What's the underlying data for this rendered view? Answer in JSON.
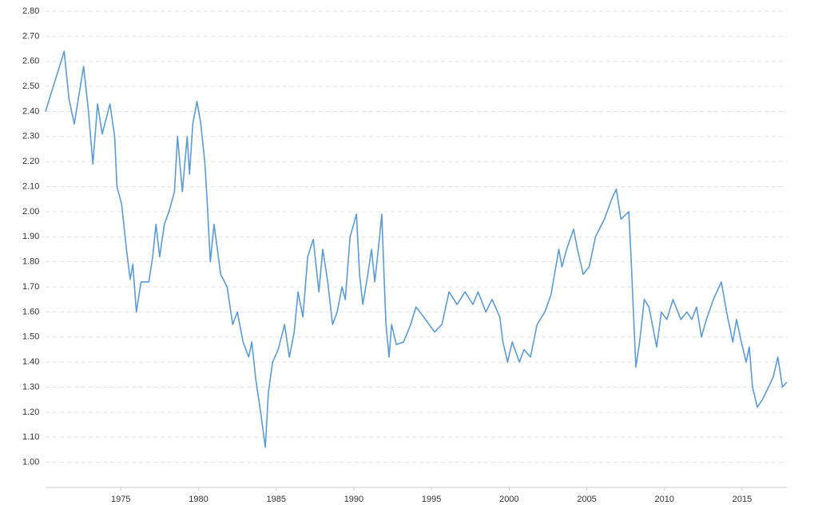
{
  "chart_data": {
    "type": "line",
    "x": [
      1970.15,
      1971.35,
      1971.66,
      1972.0,
      1972.6,
      1972.9,
      1973.2,
      1973.5,
      1973.8,
      1974.3,
      1974.6,
      1974.75,
      1975.05,
      1975.36,
      1975.6,
      1975.77,
      1976.0,
      1976.3,
      1976.8,
      1977.05,
      1977.26,
      1977.5,
      1977.8,
      1978.1,
      1978.45,
      1978.65,
      1978.96,
      1979.27,
      1979.42,
      1979.63,
      1979.9,
      1980.15,
      1980.4,
      1980.55,
      1980.76,
      1981.0,
      1981.43,
      1981.84,
      1982.2,
      1982.5,
      1982.87,
      1983.23,
      1983.43,
      1983.69,
      1984.0,
      1984.3,
      1984.5,
      1984.77,
      1985.13,
      1985.54,
      1985.85,
      1986.16,
      1986.41,
      1986.72,
      1987.03,
      1987.39,
      1987.75,
      1988.0,
      1988.32,
      1988.63,
      1988.93,
      1989.24,
      1989.45,
      1989.76,
      1990.17,
      1990.37,
      1990.58,
      1990.9,
      1991.14,
      1991.35,
      1991.66,
      1991.8,
      1991.96,
      1992.07,
      1992.27,
      1992.43,
      1992.74,
      1993.2,
      1993.66,
      1994.0,
      1994.5,
      1995.2,
      1995.67,
      1996.13,
      1996.65,
      1997.16,
      1997.67,
      1998.0,
      1998.5,
      1998.9,
      1999.4,
      1999.6,
      1999.9,
      2000.2,
      2000.66,
      2000.96,
      2001.37,
      2001.8,
      2002.3,
      2002.7,
      2003.2,
      2003.4,
      2003.7,
      2004.15,
      2004.4,
      2004.77,
      2005.15,
      2005.56,
      2006.13,
      2006.6,
      2006.9,
      2007.2,
      2007.7,
      2007.85,
      2008.0,
      2008.16,
      2008.4,
      2008.7,
      2009.0,
      2009.5,
      2009.8,
      2010.15,
      2010.55,
      2011.05,
      2011.45,
      2011.76,
      2012.07,
      2012.38,
      2012.7,
      2013.15,
      2013.66,
      2014.0,
      2014.4,
      2014.64,
      2014.95,
      2015.26,
      2015.46,
      2015.67,
      2015.98,
      2016.3,
      2016.7,
      2017.0,
      2017.3,
      2017.6,
      2017.88
    ],
    "values": [
      2.4,
      2.64,
      2.45,
      2.35,
      2.58,
      2.41,
      2.19,
      2.43,
      2.31,
      2.43,
      2.3,
      2.1,
      2.03,
      1.85,
      1.73,
      1.79,
      1.6,
      1.72,
      1.72,
      1.82,
      1.95,
      1.82,
      1.95,
      2.0,
      2.08,
      2.3,
      2.08,
      2.3,
      2.15,
      2.35,
      2.44,
      2.35,
      2.2,
      2.05,
      1.8,
      1.95,
      1.75,
      1.7,
      1.55,
      1.6,
      1.48,
      1.42,
      1.48,
      1.33,
      1.2,
      1.06,
      1.28,
      1.4,
      1.45,
      1.55,
      1.42,
      1.52,
      1.68,
      1.58,
      1.82,
      1.89,
      1.68,
      1.85,
      1.72,
      1.55,
      1.6,
      1.7,
      1.65,
      1.9,
      1.99,
      1.75,
      1.63,
      1.75,
      1.85,
      1.72,
      1.9,
      1.99,
      1.72,
      1.55,
      1.42,
      1.55,
      1.47,
      1.48,
      1.55,
      1.62,
      1.58,
      1.52,
      1.55,
      1.68,
      1.63,
      1.68,
      1.63,
      1.68,
      1.6,
      1.65,
      1.58,
      1.48,
      1.4,
      1.48,
      1.4,
      1.45,
      1.42,
      1.55,
      1.6,
      1.67,
      1.85,
      1.78,
      1.85,
      1.93,
      1.85,
      1.75,
      1.78,
      1.9,
      1.97,
      2.05,
      2.09,
      1.97,
      2.0,
      1.82,
      1.6,
      1.38,
      1.48,
      1.65,
      1.62,
      1.46,
      1.6,
      1.57,
      1.65,
      1.57,
      1.6,
      1.57,
      1.62,
      1.5,
      1.57,
      1.65,
      1.72,
      1.6,
      1.48,
      1.57,
      1.48,
      1.4,
      1.46,
      1.3,
      1.22,
      1.25,
      1.3,
      1.34,
      1.42,
      1.3,
      1.32
    ],
    "color": "#5b9bd5",
    "xlim": [
      1970.15,
      2017.88
    ],
    "xticks": [
      1975,
      1980,
      1985,
      1990,
      1995,
      2000,
      2005,
      2010,
      2015
    ],
    "ylim": [
      0.9,
      2.8
    ],
    "yticks": [
      {
        "value": 1.0,
        "label": "1.00"
      },
      {
        "value": 1.1,
        "label": "1.10"
      },
      {
        "value": 1.2,
        "label": "1.20"
      },
      {
        "value": 1.3,
        "label": "1.30"
      },
      {
        "value": 1.4,
        "label": "1.40"
      },
      {
        "value": 1.5,
        "label": "1.50"
      },
      {
        "value": 1.6,
        "label": "1.60"
      },
      {
        "value": 1.7,
        "label": "1.70"
      },
      {
        "value": 1.8,
        "label": "1.80"
      },
      {
        "value": 1.9,
        "label": "1.90"
      },
      {
        "value": 2.0,
        "label": "2.00"
      },
      {
        "value": 2.1,
        "label": "2.10"
      },
      {
        "value": 2.2,
        "label": "2.20"
      },
      {
        "value": 2.3,
        "label": "2.30"
      },
      {
        "value": 2.4,
        "label": "2.40"
      },
      {
        "value": 2.5,
        "label": "2.50"
      },
      {
        "value": 2.6,
        "label": "2.60"
      },
      {
        "value": 2.7,
        "label": "2.70"
      },
      {
        "value": 2.8,
        "label": "2.80"
      }
    ],
    "grid": true
  }
}
